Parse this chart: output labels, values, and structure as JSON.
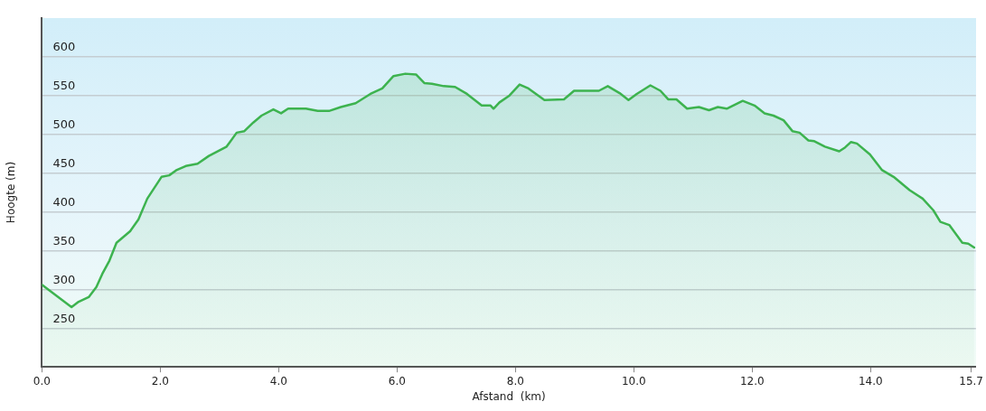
{
  "chart_data": {
    "type": "area",
    "xlabel": "Afstand  (km)",
    "ylabel": "Hoogte (m)",
    "x": [
      0.0,
      0.5,
      0.62,
      0.79,
      0.92,
      1.02,
      1.14,
      1.26,
      1.49,
      1.63,
      1.78,
      2.02,
      2.15,
      2.28,
      2.43,
      2.63,
      2.82,
      3.12,
      3.29,
      3.42,
      3.57,
      3.71,
      3.91,
      4.04,
      4.16,
      4.46,
      4.66,
      4.85,
      5.05,
      5.3,
      5.55,
      5.75,
      5.94,
      6.14,
      6.32,
      6.46,
      6.59,
      6.79,
      6.98,
      7.18,
      7.43,
      7.58,
      7.63,
      7.73,
      7.9,
      8.07,
      8.22,
      8.49,
      8.82,
      8.99,
      9.26,
      9.41,
      9.56,
      9.76,
      9.91,
      10.05,
      10.28,
      10.45,
      10.58,
      10.72,
      10.9,
      11.1,
      11.27,
      11.42,
      11.57,
      11.84,
      12.04,
      12.21,
      12.36,
      12.53,
      12.68,
      12.8,
      12.95,
      13.05,
      13.23,
      13.47,
      13.57,
      13.67,
      13.77,
      13.99,
      14.19,
      14.39,
      14.66,
      14.88,
      15.06,
      15.18,
      15.33,
      15.55,
      15.65,
      15.75
    ],
    "series": [
      {
        "color": "#3db34f",
        "values": [
          306,
          277,
          284,
          290,
          303,
          320,
          337,
          360,
          375,
          390,
          417,
          445,
          447,
          454,
          459,
          462,
          472,
          484,
          502,
          504,
          515,
          524,
          532,
          527,
          533,
          533,
          530,
          530,
          535,
          540,
          552,
          559,
          575,
          578,
          577,
          566,
          565,
          562,
          561,
          552,
          537,
          537,
          533,
          541,
          550,
          564,
          559,
          544,
          545,
          556,
          556,
          556,
          562,
          553,
          544,
          552,
          563,
          556,
          545,
          545,
          533,
          535,
          531,
          535,
          533,
          543,
          537,
          527,
          524,
          518,
          504,
          502,
          492,
          491,
          484,
          478,
          483,
          490,
          488,
          474,
          454,
          445,
          428,
          417,
          402,
          387,
          383,
          360,
          359,
          354
        ]
      }
    ],
    "xlim": [
      0,
      15.78
    ],
    "xticks": [
      {
        "value": 0,
        "label": "0.0"
      },
      {
        "value": 2,
        "label": "2.0"
      },
      {
        "value": 4,
        "label": "4.0"
      },
      {
        "value": 6,
        "label": "6.0"
      },
      {
        "value": 8,
        "label": "8.0"
      },
      {
        "value": 10,
        "label": "10.0"
      },
      {
        "value": 12,
        "label": "12.0"
      },
      {
        "value": 14,
        "label": "14.0"
      },
      15.7
    ],
    "ylim": [
      200,
      650
    ],
    "yticks": [
      250,
      300,
      350,
      400,
      450,
      500,
      550,
      600
    ],
    "grid": "y"
  }
}
